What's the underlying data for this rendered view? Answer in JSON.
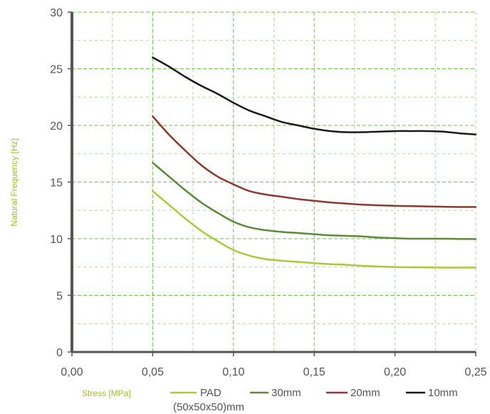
{
  "chart_data": {
    "type": "line",
    "title": "",
    "xlabel": "Stress [MPa]",
    "ylabel": "Natural Frequency [Hz]",
    "xlim": [
      0,
      0.25
    ],
    "ylim": [
      0,
      30
    ],
    "x_ticks": [
      "0,00",
      "0,05",
      "0,10",
      "0,15",
      "0,20",
      "0,25"
    ],
    "y_ticks": [
      "0",
      "5",
      "10",
      "15",
      "20",
      "25",
      "30"
    ],
    "grid": true,
    "legend_position": "bottom",
    "series": [
      {
        "name": "PAD",
        "name_line2": "(50x50x50)mm",
        "color": "#a9c93a",
        "x": [
          0.05,
          0.06,
          0.07,
          0.08,
          0.09,
          0.1,
          0.11,
          0.12,
          0.13,
          0.14,
          0.15,
          0.16,
          0.17,
          0.18,
          0.19,
          0.2,
          0.21,
          0.22,
          0.23,
          0.24,
          0.25
        ],
        "y": [
          14.2,
          13.0,
          11.8,
          10.7,
          9.8,
          9.0,
          8.5,
          8.2,
          8.05,
          7.95,
          7.85,
          7.75,
          7.7,
          7.6,
          7.55,
          7.5,
          7.48,
          7.47,
          7.45,
          7.45,
          7.45
        ]
      },
      {
        "name": "30mm",
        "color": "#5a8a3a",
        "x": [
          0.05,
          0.06,
          0.07,
          0.08,
          0.09,
          0.1,
          0.11,
          0.12,
          0.13,
          0.14,
          0.15,
          0.16,
          0.17,
          0.18,
          0.19,
          0.2,
          0.21,
          0.22,
          0.23,
          0.24,
          0.25
        ],
        "y": [
          16.7,
          15.5,
          14.3,
          13.2,
          12.3,
          11.5,
          11.0,
          10.75,
          10.6,
          10.5,
          10.4,
          10.3,
          10.25,
          10.2,
          10.1,
          10.05,
          10.0,
          10.0,
          10.0,
          9.98,
          9.97
        ]
      },
      {
        "name": "20mm",
        "color": "#8b3a2e",
        "x": [
          0.05,
          0.06,
          0.07,
          0.08,
          0.09,
          0.1,
          0.11,
          0.12,
          0.13,
          0.14,
          0.15,
          0.16,
          0.17,
          0.18,
          0.19,
          0.2,
          0.21,
          0.22,
          0.23,
          0.24,
          0.25
        ],
        "y": [
          20.8,
          19.2,
          17.8,
          16.5,
          15.5,
          14.8,
          14.2,
          13.9,
          13.7,
          13.5,
          13.35,
          13.2,
          13.1,
          13.0,
          12.95,
          12.9,
          12.88,
          12.85,
          12.82,
          12.8,
          12.8
        ]
      },
      {
        "name": "10mm",
        "color": "#1a1a1a",
        "x": [
          0.05,
          0.06,
          0.07,
          0.08,
          0.09,
          0.1,
          0.11,
          0.12,
          0.13,
          0.14,
          0.15,
          0.16,
          0.17,
          0.18,
          0.19,
          0.2,
          0.21,
          0.22,
          0.23,
          0.24,
          0.25
        ],
        "y": [
          26.0,
          25.2,
          24.3,
          23.5,
          22.8,
          22.0,
          21.3,
          20.8,
          20.3,
          20.0,
          19.7,
          19.5,
          19.4,
          19.4,
          19.45,
          19.5,
          19.5,
          19.5,
          19.45,
          19.3,
          19.2
        ]
      }
    ]
  }
}
